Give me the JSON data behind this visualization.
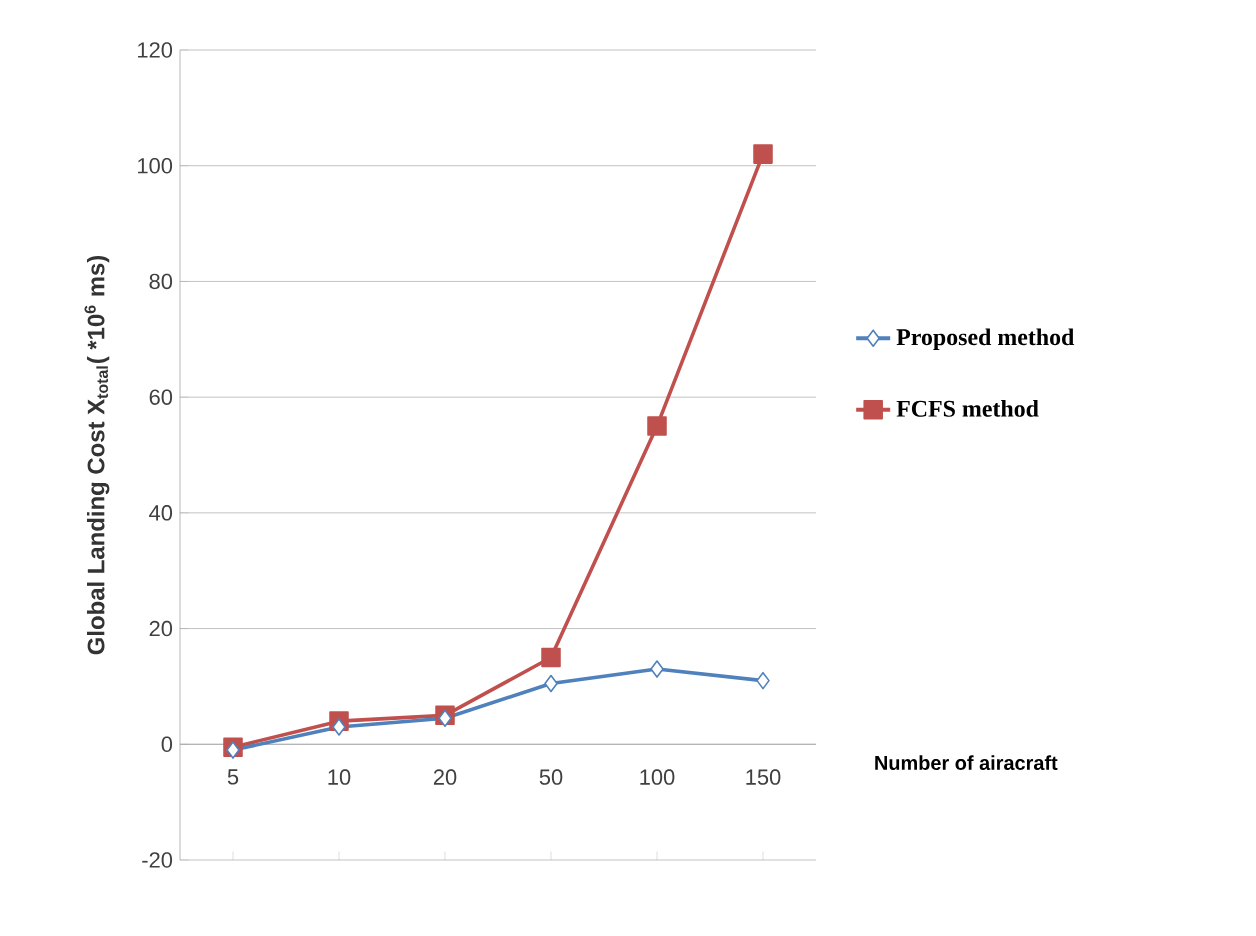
{
  "chart_data": {
    "type": "line",
    "ylabel": "Global Landing Cost X$_{total}$( *10$^{6}$ ms)",
    "xlabel": "Number of airacraft",
    "categories": [
      "5",
      "10",
      "20",
      "50",
      "100",
      "150"
    ],
    "series": [
      {
        "name": "Proposed method",
        "color": "#4f81bd",
        "marker": "diamond",
        "values": [
          -1,
          3,
          4.5,
          10.5,
          13,
          11
        ]
      },
      {
        "name": "FCFS method",
        "color": "#c0504d",
        "marker": "square",
        "values": [
          -0.5,
          4,
          5,
          15,
          55,
          102
        ]
      }
    ],
    "ylim": [
      -20,
      120
    ],
    "yticks": [
      -20,
      0,
      20,
      40,
      60,
      80,
      100,
      120
    ],
    "grid": "y",
    "legend": "right"
  }
}
